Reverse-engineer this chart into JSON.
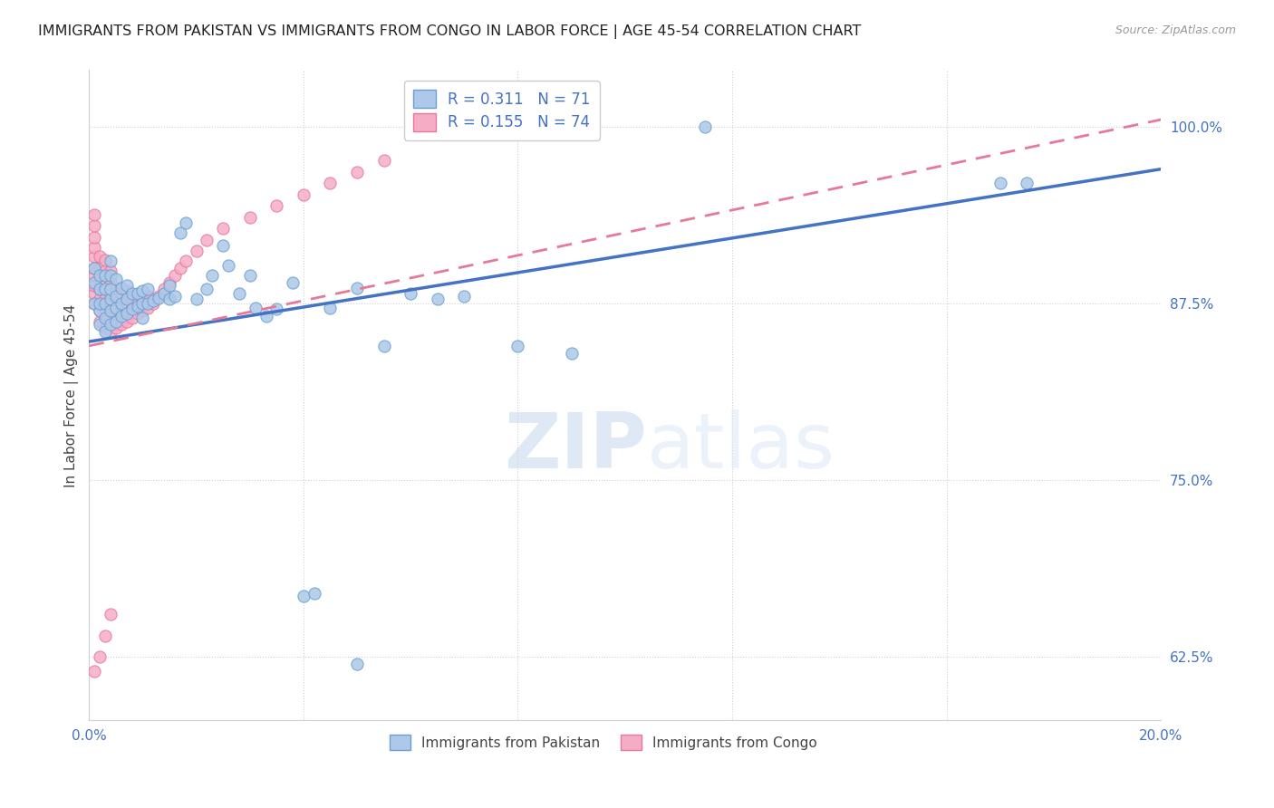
{
  "title": "IMMIGRANTS FROM PAKISTAN VS IMMIGRANTS FROM CONGO IN LABOR FORCE | AGE 45-54 CORRELATION CHART",
  "source": "Source: ZipAtlas.com",
  "ylabel": "In Labor Force | Age 45-54",
  "xlim": [
    0.0,
    0.2
  ],
  "ylim": [
    0.58,
    1.04
  ],
  "yticks": [
    0.625,
    0.75,
    0.875,
    1.0
  ],
  "ytick_labels": [
    "62.5%",
    "75.0%",
    "87.5%",
    "100.0%"
  ],
  "xtick_positions": [
    0.0,
    0.04,
    0.08,
    0.12,
    0.16,
    0.2
  ],
  "xtick_labels": [
    "0.0%",
    "",
    "",
    "",
    "",
    "20.0%"
  ],
  "legend_pakistan": "Immigrants from Pakistan",
  "legend_congo": "Immigrants from Congo",
  "R_pakistan": 0.311,
  "N_pakistan": 71,
  "R_congo": 0.155,
  "N_congo": 74,
  "color_pakistan": "#adc8e8",
  "color_congo": "#f5adc5",
  "edge_pakistan": "#6b9fd4",
  "edge_congo": "#e8789c",
  "line_pakistan": "#4472c4",
  "line_congo": "#e87898",
  "watermark_zip": "ZIP",
  "watermark_atlas": "atlas",
  "pakistan_line_y0": 0.848,
  "pakistan_line_y1": 0.97,
  "congo_line_y0": 0.845,
  "congo_line_y1": 1.005,
  "pakistan_x": [
    0.001,
    0.001,
    0.001,
    0.002,
    0.002,
    0.002,
    0.002,
    0.002,
    0.003,
    0.003,
    0.003,
    0.003,
    0.003,
    0.004,
    0.004,
    0.004,
    0.004,
    0.004,
    0.004,
    0.005,
    0.005,
    0.005,
    0.005,
    0.006,
    0.006,
    0.006,
    0.007,
    0.007,
    0.007,
    0.008,
    0.008,
    0.009,
    0.009,
    0.01,
    0.01,
    0.01,
    0.011,
    0.011,
    0.012,
    0.013,
    0.014,
    0.015,
    0.015,
    0.016,
    0.017,
    0.018,
    0.02,
    0.022,
    0.023,
    0.025,
    0.026,
    0.028,
    0.03,
    0.031,
    0.033,
    0.035,
    0.038,
    0.04,
    0.042,
    0.045,
    0.05,
    0.055,
    0.06,
    0.065,
    0.07,
    0.08,
    0.09,
    0.115,
    0.17,
    0.175,
    0.05
  ],
  "pakistan_y": [
    0.875,
    0.89,
    0.9,
    0.86,
    0.87,
    0.875,
    0.885,
    0.895,
    0.855,
    0.865,
    0.875,
    0.885,
    0.895,
    0.86,
    0.87,
    0.878,
    0.885,
    0.895,
    0.905,
    0.862,
    0.872,
    0.88,
    0.892,
    0.866,
    0.875,
    0.886,
    0.868,
    0.878,
    0.888,
    0.871,
    0.882,
    0.873,
    0.882,
    0.865,
    0.875,
    0.884,
    0.875,
    0.885,
    0.877,
    0.879,
    0.882,
    0.878,
    0.888,
    0.88,
    0.925,
    0.932,
    0.878,
    0.885,
    0.895,
    0.916,
    0.902,
    0.882,
    0.895,
    0.872,
    0.866,
    0.871,
    0.89,
    0.668,
    0.67,
    0.872,
    0.886,
    0.845,
    0.882,
    0.878,
    0.88,
    0.845,
    0.84,
    1.0,
    0.96,
    0.96,
    0.62
  ],
  "congo_x": [
    0.001,
    0.001,
    0.001,
    0.001,
    0.001,
    0.001,
    0.001,
    0.001,
    0.001,
    0.001,
    0.002,
    0.002,
    0.002,
    0.002,
    0.002,
    0.002,
    0.002,
    0.003,
    0.003,
    0.003,
    0.003,
    0.003,
    0.003,
    0.003,
    0.003,
    0.004,
    0.004,
    0.004,
    0.004,
    0.004,
    0.004,
    0.004,
    0.005,
    0.005,
    0.005,
    0.005,
    0.005,
    0.006,
    0.006,
    0.006,
    0.006,
    0.007,
    0.007,
    0.007,
    0.007,
    0.008,
    0.008,
    0.008,
    0.009,
    0.009,
    0.01,
    0.01,
    0.011,
    0.011,
    0.012,
    0.013,
    0.014,
    0.015,
    0.016,
    0.017,
    0.018,
    0.02,
    0.022,
    0.025,
    0.03,
    0.035,
    0.04,
    0.045,
    0.05,
    0.055,
    0.001,
    0.002,
    0.003,
    0.004
  ],
  "congo_y": [
    0.875,
    0.882,
    0.888,
    0.895,
    0.9,
    0.908,
    0.915,
    0.922,
    0.93,
    0.938,
    0.862,
    0.87,
    0.878,
    0.885,
    0.892,
    0.9,
    0.908,
    0.858,
    0.865,
    0.872,
    0.878,
    0.885,
    0.892,
    0.898,
    0.906,
    0.855,
    0.862,
    0.869,
    0.876,
    0.882,
    0.89,
    0.898,
    0.858,
    0.865,
    0.872,
    0.878,
    0.886,
    0.86,
    0.868,
    0.875,
    0.882,
    0.862,
    0.87,
    0.876,
    0.884,
    0.865,
    0.872,
    0.88,
    0.868,
    0.876,
    0.87,
    0.878,
    0.872,
    0.88,
    0.875,
    0.88,
    0.885,
    0.89,
    0.895,
    0.9,
    0.905,
    0.912,
    0.92,
    0.928,
    0.936,
    0.944,
    0.952,
    0.96,
    0.968,
    0.976,
    0.615,
    0.625,
    0.64,
    0.655
  ]
}
